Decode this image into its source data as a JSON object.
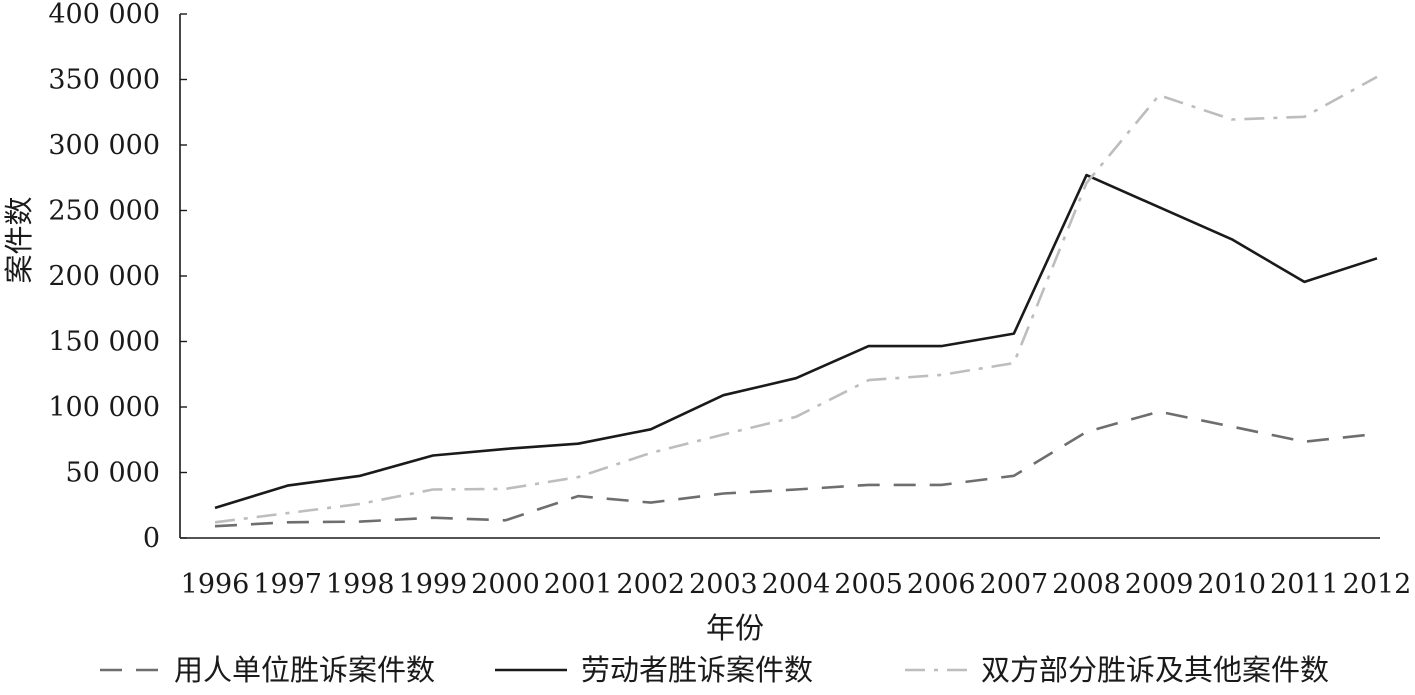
{
  "chart_data": {
    "type": "line",
    "title": "",
    "xlabel": "年份",
    "ylabel": "案件数",
    "categories": [
      "1996",
      "1997",
      "1998",
      "1999",
      "2000",
      "2001",
      "2002",
      "2003",
      "2004",
      "2005",
      "2006",
      "2007",
      "2008",
      "2009",
      "2010",
      "2011",
      "2012"
    ],
    "ylim": [
      0,
      400000
    ],
    "yticks": [
      0,
      50000,
      100000,
      150000,
      200000,
      250000,
      300000,
      350000,
      400000
    ],
    "ytick_labels": [
      "0",
      "50 000",
      "100 000",
      "150 000",
      "200 000",
      "250 000",
      "300 000",
      "350 000",
      "400 000"
    ],
    "grid": false,
    "legend_position": "bottom",
    "series": [
      {
        "name": "用人单位胜诉案件数",
        "color": "#6e6e6e",
        "style": "dashed",
        "values": [
          9000,
          12000,
          12500,
          15500,
          13500,
          32000,
          27000,
          34000,
          37000,
          40500,
          40500,
          47500,
          81000,
          96500,
          85000,
          73500,
          79500
        ]
      },
      {
        "name": "劳动者胜诉案件数",
        "color": "#1a1a1a",
        "style": "solid",
        "values": [
          23000,
          40000,
          47500,
          63000,
          68000,
          72000,
          83000,
          109000,
          122000,
          146500,
          146500,
          156000,
          277000,
          252500,
          228000,
          195500,
          213500
        ]
      },
      {
        "name": "双方部分胜诉及其他案件数",
        "color": "#bdbdbd",
        "style": "dashdot",
        "values": [
          12000,
          19000,
          26000,
          37000,
          37500,
          46500,
          65000,
          79000,
          92500,
          120500,
          124500,
          133500,
          271000,
          338000,
          319500,
          321500,
          352000
        ]
      }
    ]
  }
}
